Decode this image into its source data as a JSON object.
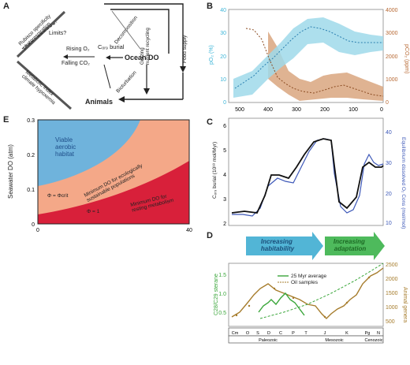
{
  "panel_a": {
    "letter": "A",
    "diag_left": "Rubisco specificity\nphotorespiration",
    "diag_left2": "Metabolic index\nclimate hypoxemia",
    "limits": "Limits?",
    "decomposition": "Decomposition",
    "rising_o2": "Rising O₂",
    "falling_co2": "Falling CO₂",
    "c_org_burial": "Cₒᵣ₉ burial",
    "ocean_do": "Ocean DO",
    "grazing": "Grazing\nnutrient recycling",
    "food_supply": "Food supply",
    "bioturbation": "Bioturbation",
    "animals": "Animals"
  },
  "panel_e": {
    "letter": "E",
    "ylabel": "Seawater DO (atm)",
    "yticks": [
      "0.3",
      "0.2",
      "0.1",
      "0"
    ],
    "xticks": [
      "0",
      "40"
    ],
    "viable": "Viable\naerobic\nhabitat",
    "minimum_sustainable": "Minimum DO for ecologically\nsustainable populations",
    "minimum_resting": "Minimum DO for\nresting metabolism",
    "phi_crit": "Φ = Φcrit",
    "phi_one": "Φ = 1"
  },
  "panel_b": {
    "letter": "B",
    "ylabel_left": "pO₂ (%)",
    "ylabel_right": "pCO₂ (ppm)",
    "yticks_left": [
      "40",
      "30",
      "20",
      "10",
      "0"
    ],
    "yticks_right": [
      "4000",
      "3000",
      "2000",
      "1000",
      "0"
    ],
    "xticks": [
      "500",
      "400",
      "300",
      "200",
      "100",
      "0"
    ]
  },
  "panel_c": {
    "letter": "C",
    "ylabel_left": "Cₒᵣ₉ burial (10¹⁸ mol/Myr)",
    "ylabel_right": "Equilibrium dissolved O₂ Cons (mol/mol)",
    "yticks_left": [
      "6",
      "5",
      "4",
      "3",
      "2"
    ],
    "yticks_right": [
      "40",
      "30",
      "20",
      "10"
    ]
  },
  "panel_d": {
    "letter": "D",
    "arrow1": "Increasing\nhabitability",
    "arrow2": "Increasing\nadaptation",
    "ylabel_left": "C28/C29 sterane",
    "ylabel_right": "Animal genera",
    "yticks_left": [
      "1.5",
      "1.0",
      "0.5"
    ],
    "yticks_right": [
      "2500",
      "2000",
      "1500",
      "1000",
      "500"
    ],
    "legend_1": "25 Myr average",
    "legend_2": "Oil samples",
    "periods": [
      "Cm",
      "O",
      "S",
      "D",
      "C",
      "P",
      "T",
      "J",
      "K",
      "Pg",
      "N"
    ],
    "eras": [
      "Paleozoic",
      "Mesozoic",
      "Cenozoic"
    ]
  },
  "colors": {
    "o2": "#3fb6d8",
    "o2_band": "#9fd9ea",
    "co2": "#b86a35",
    "co2_band": "#d9a67f",
    "burial": "#111111",
    "dissolved": "#3d58b8",
    "sterane": "#3aa63a",
    "genera": "#a67c2c",
    "habitat_blue": "#6fb3dc",
    "zone_salmon": "#f4a888",
    "zone_red": "#d8203a",
    "arrow_blue": "#34a8cf",
    "arrow_green": "#3bb34a"
  }
}
